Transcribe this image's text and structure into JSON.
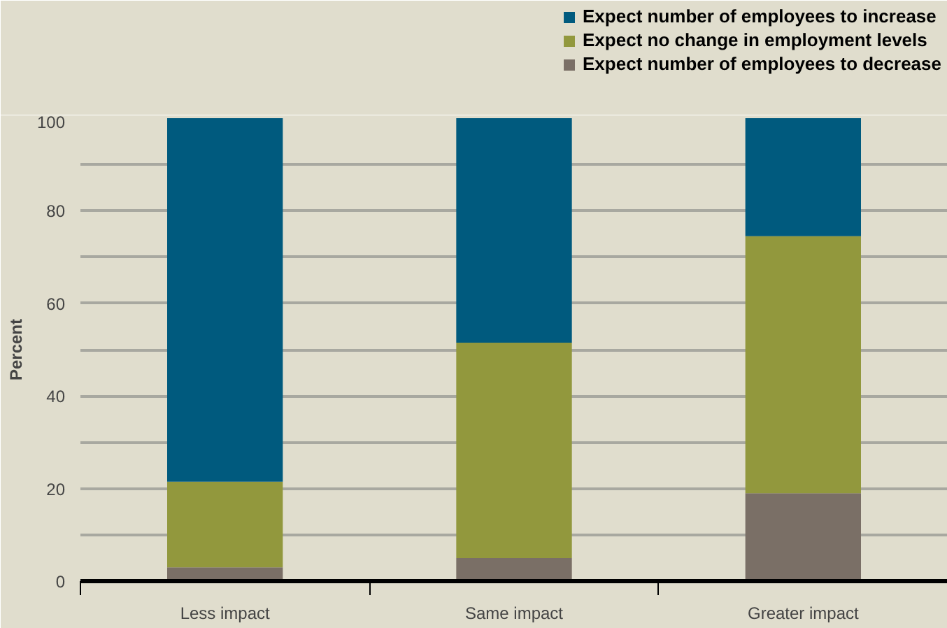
{
  "chart_data": {
    "type": "bar",
    "stacked": true,
    "ylabel": "Percent",
    "categories": [
      "Less impact",
      "Same impact",
      "Greater impact"
    ],
    "series": [
      {
        "name": "Expect number of employees to decrease",
        "color": "#7a6f66",
        "values": [
          3,
          5,
          19
        ]
      },
      {
        "name": "Expect no change in employment levels",
        "color": "#92983d",
        "values": [
          18.5,
          46.5,
          55.5
        ]
      },
      {
        "name": "Expect number of employees to increase",
        "color": "#005a7e",
        "values": [
          78.5,
          48.5,
          25.5
        ]
      }
    ],
    "ylim": [
      0,
      100
    ],
    "yticks": [
      0,
      {
        "value": 10,
        "label": null
      },
      20,
      {
        "value": 30,
        "label": null
      },
      40,
      {
        "value": 50,
        "label": null
      },
      60,
      {
        "value": 70,
        "label": null
      },
      80,
      {
        "value": 90,
        "label": null
      },
      100
    ],
    "grid": "y",
    "legend": "top right"
  }
}
